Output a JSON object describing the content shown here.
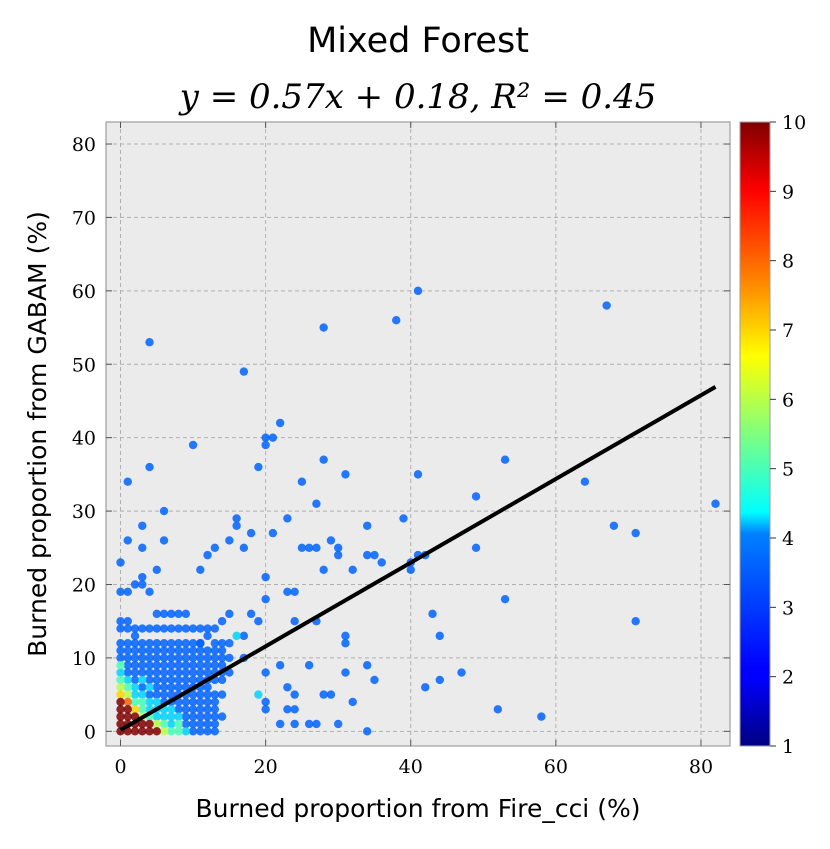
{
  "chart_data": {
    "type": "scatter",
    "title": "Mixed Forest",
    "subtitle": "y = 0.57x + 0.18, R² = 0.45",
    "xlabel": "Burned proportion from Fire_cci (%)",
    "ylabel": "Burned proportion from GABAM (%)",
    "xlim": [
      -2,
      84
    ],
    "ylim": [
      -2,
      83
    ],
    "xticks": [
      0,
      20,
      40,
      60,
      80
    ],
    "yticks": [
      0,
      10,
      20,
      30,
      40,
      50,
      60,
      70,
      80
    ],
    "grid": true,
    "background_color": "#ebebeb",
    "grid_color": "#b0b0b0",
    "regression": {
      "slope": 0.57,
      "intercept": 0.18,
      "r2": 0.45,
      "color": "#000000"
    },
    "colorbar": {
      "min": 1,
      "max": 10,
      "ticks": [
        1,
        2,
        3,
        4,
        5,
        6,
        7,
        8,
        9,
        10
      ],
      "colormap": "jet",
      "placement": "right"
    },
    "points": [
      [
        0,
        23,
        3
      ],
      [
        0,
        19,
        3
      ],
      [
        1,
        19,
        3
      ],
      [
        0,
        15,
        3
      ],
      [
        1,
        15,
        3
      ],
      [
        1,
        26,
        3
      ],
      [
        1,
        34,
        3
      ],
      [
        2,
        20,
        3
      ],
      [
        3,
        20,
        3
      ],
      [
        2,
        13,
        3
      ],
      [
        3,
        12,
        3
      ],
      [
        3,
        21,
        3
      ],
      [
        3,
        25,
        3
      ],
      [
        3,
        28,
        3
      ],
      [
        4,
        53,
        3
      ],
      [
        4,
        36,
        3
      ],
      [
        4,
        19,
        3
      ],
      [
        5,
        22,
        3
      ],
      [
        5,
        16,
        3
      ],
      [
        6,
        30,
        3
      ],
      [
        6,
        26,
        3
      ],
      [
        6,
        16,
        3
      ],
      [
        7,
        16,
        3
      ],
      [
        8,
        16,
        3
      ],
      [
        9,
        16,
        3
      ],
      [
        10,
        39,
        3
      ],
      [
        11,
        22,
        3
      ],
      [
        11,
        12,
        3
      ],
      [
        12,
        24,
        3
      ],
      [
        13,
        25,
        3
      ],
      [
        12,
        10,
        3
      ],
      [
        12,
        13,
        3
      ],
      [
        14,
        15,
        3
      ],
      [
        14,
        9,
        3
      ],
      [
        15,
        26,
        3
      ],
      [
        15,
        16,
        3
      ],
      [
        16,
        28,
        3
      ],
      [
        16,
        29,
        3
      ],
      [
        17,
        49,
        3
      ],
      [
        17,
        25,
        3
      ],
      [
        17,
        10,
        3
      ],
      [
        17,
        13,
        3
      ],
      [
        18,
        27,
        3
      ],
      [
        18,
        16,
        3
      ],
      [
        19,
        36,
        3
      ],
      [
        19,
        15,
        3
      ],
      [
        20,
        40,
        3
      ],
      [
        20,
        39,
        3
      ],
      [
        20,
        21,
        3
      ],
      [
        20,
        18,
        3
      ],
      [
        20,
        8,
        3
      ],
      [
        20,
        4,
        3
      ],
      [
        20,
        3,
        3
      ],
      [
        21,
        40,
        3
      ],
      [
        21,
        27,
        3
      ],
      [
        22,
        42,
        3
      ],
      [
        22,
        9,
        3
      ],
      [
        22,
        1,
        3
      ],
      [
        23,
        29,
        3
      ],
      [
        23,
        19,
        3
      ],
      [
        23,
        6,
        3
      ],
      [
        23,
        3,
        3
      ],
      [
        24,
        19,
        3
      ],
      [
        24,
        15,
        3
      ],
      [
        24,
        3,
        3
      ],
      [
        24,
        1,
        3
      ],
      [
        25,
        25,
        3
      ],
      [
        25,
        34,
        3
      ],
      [
        26,
        25,
        3
      ],
      [
        26,
        9,
        3
      ],
      [
        26,
        1,
        3
      ],
      [
        27,
        31,
        3
      ],
      [
        27,
        25,
        3
      ],
      [
        27,
        15,
        3
      ],
      [
        27,
        1,
        3
      ],
      [
        28,
        55,
        3
      ],
      [
        28,
        37,
        3
      ],
      [
        28,
        22,
        3
      ],
      [
        28,
        5,
        3
      ],
      [
        29,
        26,
        3
      ],
      [
        29,
        5,
        3
      ],
      [
        30,
        25,
        3
      ],
      [
        30,
        24,
        3
      ],
      [
        30,
        1,
        3
      ],
      [
        31,
        35,
        3
      ],
      [
        31,
        13,
        3
      ],
      [
        31,
        12,
        3
      ],
      [
        31,
        8,
        3
      ],
      [
        32,
        22,
        3
      ],
      [
        32,
        4,
        3
      ],
      [
        34,
        28,
        3
      ],
      [
        34,
        24,
        3
      ],
      [
        34,
        9,
        3
      ],
      [
        34,
        0,
        3
      ],
      [
        35,
        24,
        3
      ],
      [
        35,
        7,
        3
      ],
      [
        36,
        23,
        3
      ],
      [
        38,
        56,
        3
      ],
      [
        39,
        29,
        3
      ],
      [
        40,
        22,
        3
      ],
      [
        40,
        23,
        3
      ],
      [
        41,
        60,
        3
      ],
      [
        41,
        35,
        3
      ],
      [
        41,
        24,
        3
      ],
      [
        42,
        24,
        3
      ],
      [
        42,
        6,
        3
      ],
      [
        43,
        16,
        3
      ],
      [
        44,
        13,
        3
      ],
      [
        44,
        7,
        3
      ],
      [
        47,
        8,
        3
      ],
      [
        49,
        32,
        3
      ],
      [
        49,
        25,
        3
      ],
      [
        52,
        3,
        3
      ],
      [
        53,
        37,
        3
      ],
      [
        53,
        18,
        3
      ],
      [
        58,
        2,
        3
      ],
      [
        64,
        34,
        3
      ],
      [
        67,
        58,
        3
      ],
      [
        68,
        28,
        3
      ],
      [
        71,
        27,
        3
      ],
      [
        71,
        15,
        3
      ],
      [
        82,
        31,
        3
      ],
      [
        0,
        14,
        3
      ],
      [
        1,
        14,
        3
      ],
      [
        2,
        14,
        3
      ],
      [
        3,
        14,
        3
      ],
      [
        4,
        14,
        3
      ],
      [
        5,
        14,
        3
      ],
      [
        6,
        14,
        3
      ],
      [
        7,
        14,
        3
      ],
      [
        8,
        14,
        3
      ],
      [
        9,
        14,
        3
      ],
      [
        10,
        14,
        3
      ],
      [
        11,
        14,
        3
      ],
      [
        12,
        14,
        3
      ],
      [
        13,
        14,
        3
      ],
      [
        0,
        12,
        3
      ],
      [
        1,
        12,
        3
      ],
      [
        2,
        12,
        3
      ],
      [
        4,
        12,
        3
      ],
      [
        5,
        12,
        3
      ],
      [
        6,
        12,
        3
      ],
      [
        7,
        12,
        3
      ],
      [
        8,
        12,
        3
      ],
      [
        9,
        12,
        3
      ],
      [
        10,
        12,
        3
      ],
      [
        11,
        12,
        3
      ],
      [
        13,
        12,
        3
      ],
      [
        14,
        12,
        3
      ],
      [
        15,
        12,
        3
      ],
      [
        16,
        13,
        4
      ],
      [
        0,
        11,
        3
      ],
      [
        1,
        11,
        3
      ],
      [
        2,
        11,
        3
      ],
      [
        3,
        11,
        3
      ],
      [
        4,
        11,
        3
      ],
      [
        5,
        11,
        3
      ],
      [
        6,
        11,
        3
      ],
      [
        7,
        11,
        3
      ],
      [
        8,
        11,
        3
      ],
      [
        9,
        11,
        3
      ],
      [
        10,
        11,
        3
      ],
      [
        11,
        11,
        3
      ],
      [
        12,
        11,
        3
      ],
      [
        13,
        11,
        3
      ],
      [
        14,
        11,
        3
      ],
      [
        0,
        10,
        3
      ],
      [
        1,
        10,
        3
      ],
      [
        2,
        10,
        3
      ],
      [
        3,
        10,
        3
      ],
      [
        4,
        10,
        3
      ],
      [
        5,
        10,
        3
      ],
      [
        6,
        10,
        3
      ],
      [
        7,
        10,
        3
      ],
      [
        8,
        10,
        3
      ],
      [
        9,
        10,
        3
      ],
      [
        10,
        10,
        3
      ],
      [
        11,
        10,
        3
      ],
      [
        13,
        10,
        3
      ],
      [
        14,
        10,
        3
      ],
      [
        15,
        10,
        3
      ],
      [
        0,
        9,
        5
      ],
      [
        1,
        9,
        3
      ],
      [
        2,
        9,
        3
      ],
      [
        3,
        9,
        3
      ],
      [
        4,
        9,
        3
      ],
      [
        5,
        9,
        3
      ],
      [
        6,
        9,
        3
      ],
      [
        7,
        9,
        3
      ],
      [
        8,
        9,
        3
      ],
      [
        9,
        9,
        3
      ],
      [
        10,
        9,
        3
      ],
      [
        11,
        9,
        3
      ],
      [
        12,
        9,
        3
      ],
      [
        13,
        9,
        3
      ],
      [
        0,
        8,
        4
      ],
      [
        1,
        8,
        3
      ],
      [
        2,
        8,
        3
      ],
      [
        3,
        8,
        3
      ],
      [
        4,
        8,
        3
      ],
      [
        5,
        8,
        3
      ],
      [
        6,
        8,
        3
      ],
      [
        7,
        8,
        3
      ],
      [
        8,
        8,
        3
      ],
      [
        9,
        8,
        3
      ],
      [
        10,
        8,
        3
      ],
      [
        11,
        8,
        3
      ],
      [
        12,
        8,
        3
      ],
      [
        13,
        8,
        3
      ],
      [
        14,
        8,
        3
      ],
      [
        15,
        8,
        3
      ],
      [
        0,
        7,
        5
      ],
      [
        1,
        7,
        4
      ],
      [
        2,
        7,
        3
      ],
      [
        3,
        7,
        4
      ],
      [
        4,
        7,
        3
      ],
      [
        5,
        7,
        3
      ],
      [
        6,
        7,
        3
      ],
      [
        7,
        7,
        3
      ],
      [
        8,
        7,
        3
      ],
      [
        9,
        7,
        3
      ],
      [
        10,
        7,
        3
      ],
      [
        11,
        7,
        3
      ],
      [
        12,
        7,
        3
      ],
      [
        13,
        7,
        3
      ],
      [
        14,
        7,
        3
      ],
      [
        0,
        6,
        6
      ],
      [
        1,
        6,
        5
      ],
      [
        2,
        6,
        4
      ],
      [
        3,
        6,
        3
      ],
      [
        4,
        6,
        4
      ],
      [
        5,
        6,
        3
      ],
      [
        6,
        6,
        3
      ],
      [
        7,
        6,
        3
      ],
      [
        8,
        6,
        3
      ],
      [
        9,
        6,
        3
      ],
      [
        10,
        6,
        3
      ],
      [
        11,
        6,
        3
      ],
      [
        12,
        6,
        3
      ],
      [
        0,
        5,
        7
      ],
      [
        1,
        5,
        6
      ],
      [
        2,
        5,
        4
      ],
      [
        3,
        5,
        4
      ],
      [
        4,
        5,
        3
      ],
      [
        5,
        5,
        3
      ],
      [
        6,
        5,
        3
      ],
      [
        7,
        5,
        3
      ],
      [
        8,
        5,
        3
      ],
      [
        9,
        5,
        3
      ],
      [
        10,
        5,
        3
      ],
      [
        11,
        5,
        3
      ],
      [
        12,
        5,
        3
      ],
      [
        13,
        5,
        3
      ],
      [
        14,
        5,
        3
      ],
      [
        19,
        5,
        4
      ],
      [
        24,
        5,
        3
      ],
      [
        0,
        4,
        10
      ],
      [
        1,
        4,
        8
      ],
      [
        2,
        4,
        5
      ],
      [
        3,
        4,
        5
      ],
      [
        4,
        4,
        4
      ],
      [
        5,
        4,
        4
      ],
      [
        6,
        4,
        3
      ],
      [
        7,
        4,
        3
      ],
      [
        8,
        4,
        3
      ],
      [
        9,
        4,
        3
      ],
      [
        10,
        4,
        3
      ],
      [
        11,
        4,
        3
      ],
      [
        12,
        4,
        3
      ],
      [
        13,
        4,
        3
      ],
      [
        0,
        3,
        10
      ],
      [
        1,
        3,
        10
      ],
      [
        2,
        3,
        7
      ],
      [
        3,
        3,
        5
      ],
      [
        4,
        3,
        4
      ],
      [
        5,
        3,
        4
      ],
      [
        6,
        3,
        4
      ],
      [
        7,
        3,
        4
      ],
      [
        8,
        3,
        3
      ],
      [
        9,
        3,
        3
      ],
      [
        10,
        3,
        3
      ],
      [
        11,
        3,
        3
      ],
      [
        12,
        3,
        3
      ],
      [
        13,
        3,
        3
      ],
      [
        0,
        2,
        10
      ],
      [
        1,
        2,
        10
      ],
      [
        2,
        2,
        10
      ],
      [
        3,
        2,
        6
      ],
      [
        4,
        2,
        5
      ],
      [
        5,
        2,
        4
      ],
      [
        6,
        2,
        4
      ],
      [
        7,
        2,
        4
      ],
      [
        8,
        2,
        4
      ],
      [
        9,
        2,
        3
      ],
      [
        10,
        2,
        3
      ],
      [
        11,
        2,
        3
      ],
      [
        12,
        2,
        3
      ],
      [
        13,
        2,
        3
      ],
      [
        14,
        2,
        3
      ],
      [
        0,
        1,
        10
      ],
      [
        1,
        1,
        10
      ],
      [
        2,
        1,
        10
      ],
      [
        3,
        1,
        10
      ],
      [
        4,
        1,
        10
      ],
      [
        5,
        1,
        6
      ],
      [
        6,
        1,
        5
      ],
      [
        7,
        1,
        4
      ],
      [
        8,
        1,
        5
      ],
      [
        9,
        1,
        3
      ],
      [
        10,
        1,
        3
      ],
      [
        11,
        1,
        3
      ],
      [
        12,
        1,
        3
      ],
      [
        13,
        1,
        3
      ],
      [
        0,
        0,
        10
      ],
      [
        1,
        0,
        10
      ],
      [
        2,
        0,
        10
      ],
      [
        3,
        0,
        10
      ],
      [
        4,
        0,
        10
      ],
      [
        5,
        0,
        10
      ],
      [
        6,
        0,
        6
      ],
      [
        7,
        0,
        5
      ],
      [
        8,
        0,
        5
      ],
      [
        9,
        0,
        4
      ],
      [
        10,
        0,
        3
      ],
      [
        11,
        0,
        3
      ],
      [
        12,
        0,
        3
      ],
      [
        13,
        0,
        3
      ]
    ]
  }
}
